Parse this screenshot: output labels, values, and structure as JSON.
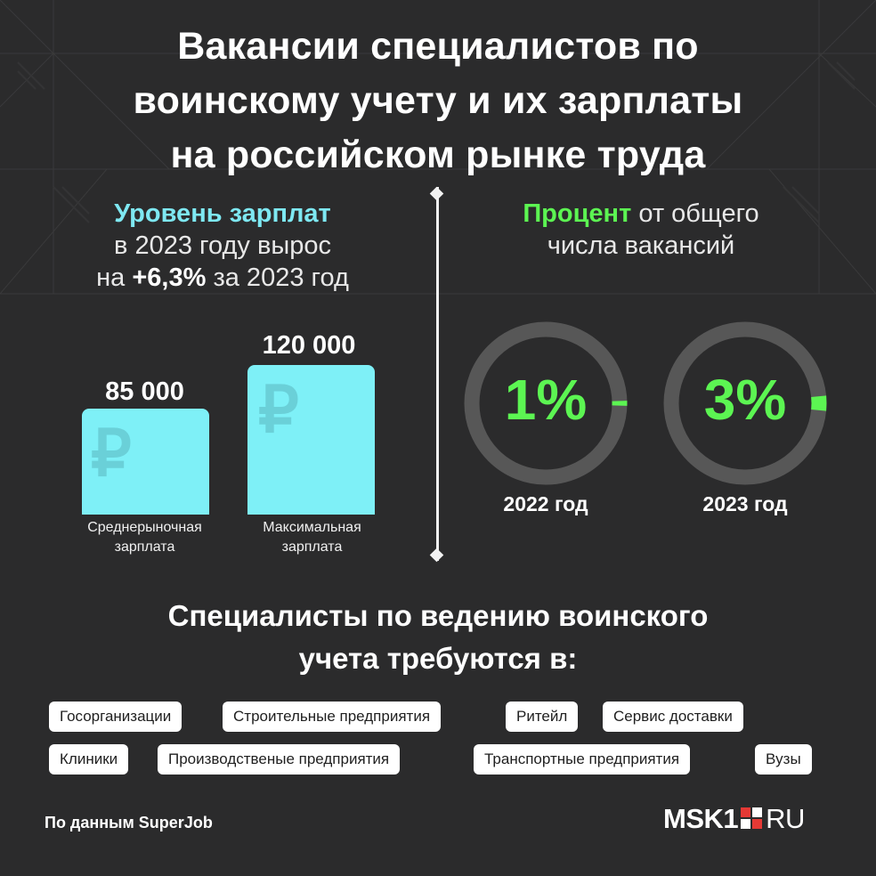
{
  "title": {
    "line1": "Вакансии специалистов по",
    "line2": "воинскому учету и их зарплаты",
    "line3": "на российском рынке труда"
  },
  "salary": {
    "head_highlight": "Уровень зарплат",
    "head_line2": "в 2023 году вырос",
    "head_prefix": "на",
    "head_bold": "+6,3%",
    "head_suffix": "за 2023 год",
    "currency_symbol": "₽",
    "bars": [
      {
        "value_label": "85 000",
        "value": 85000,
        "label_line1": "Среднерыночная",
        "label_line2": "зарплата"
      },
      {
        "value_label": "120 000",
        "value": 120000,
        "label_line1": "Максимальная",
        "label_line2": "зарплата"
      }
    ],
    "bar_color": "#7ef0f7"
  },
  "vacancies": {
    "head_highlight": "Процент",
    "head_rest": "от общего",
    "head_line2": "числа вакансий",
    "rings": [
      {
        "percent_label": "1%",
        "percent": 1,
        "year_label": "2022 год"
      },
      {
        "percent_label": "3%",
        "percent": 3,
        "year_label": "2023 год"
      }
    ],
    "accent_color": "#5cf552",
    "ring_color": "#575757"
  },
  "sectors": {
    "title_line1": "Специалисты по ведению воинского",
    "title_line2": "учета требуются в:",
    "tags": [
      "Госорганизации",
      "Строительные предприятия",
      "Ритейл",
      "Сервис доставки",
      "Клиники",
      "Производственые предприятия",
      "Транспортные предприятия",
      "Вузы"
    ]
  },
  "footer": {
    "source": "По данным SuperJob",
    "logo_main": "MSK1",
    "logo_suffix": "RU"
  }
}
